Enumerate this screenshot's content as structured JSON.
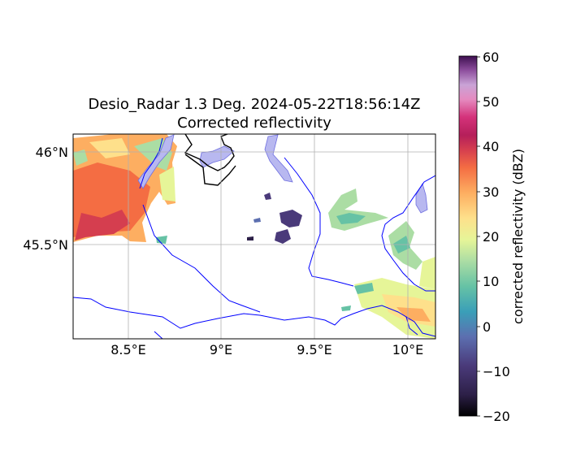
{
  "figure": {
    "title_line1": "Desio_Radar 1.3 Deg. 2024-05-22T18:56:14Z",
    "title_line2": "Corrected reflectivity"
  },
  "map": {
    "extent": {
      "lon": [
        8.2,
        10.15
      ],
      "lat": [
        45.0,
        46.1
      ]
    },
    "lon_ticks": [
      {
        "value": 8.5,
        "label": "8.5°E"
      },
      {
        "value": 9.0,
        "label": "9°E"
      },
      {
        "value": 9.5,
        "label": "9.5°E"
      },
      {
        "value": 10.0,
        "label": "10°E"
      }
    ],
    "lat_ticks": [
      {
        "value": 46.0,
        "label": "46°N"
      },
      {
        "value": 45.5,
        "label": "45.5°N"
      }
    ],
    "gridlines": true,
    "colors": {
      "border": "#000000",
      "rivers": "#0000ff",
      "lakes": "#b8b8f0"
    }
  },
  "colorbar": {
    "label": "corrected reflectivity (dBZ)",
    "min": -20,
    "max": 60,
    "ticks": [
      "60",
      "50",
      "40",
      "30",
      "20",
      "10",
      "0",
      "−10",
      "−20"
    ],
    "colormap": [
      "#000000",
      "#2d2048",
      "#4a3a7a",
      "#5c6fb0",
      "#3a9fb8",
      "#66c2a5",
      "#abdda4",
      "#e6f598",
      "#fee08b",
      "#fdae61",
      "#f46d43",
      "#d53e4f",
      "#b51f5a",
      "#d4327a",
      "#e58bc0",
      "#c9a3d6",
      "#8e4f9e",
      "#3d0f4f"
    ]
  }
}
